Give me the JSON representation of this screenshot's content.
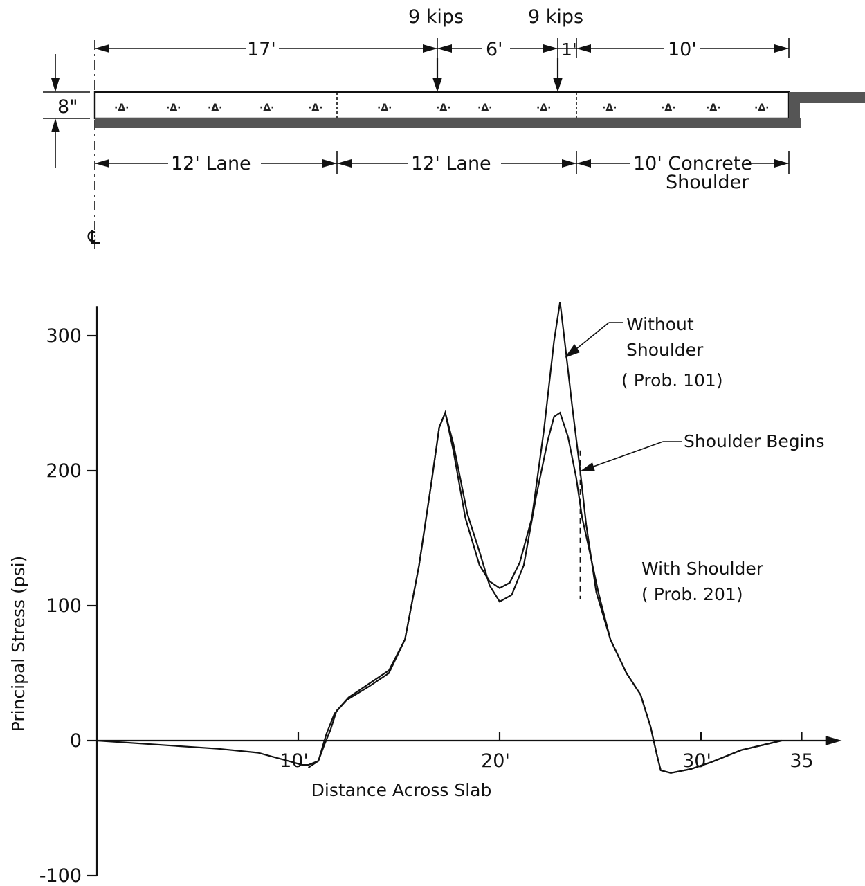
{
  "section_diagram": {
    "loads": [
      "9 kips",
      "9 kips"
    ],
    "spacing": [
      "17'",
      "6'",
      "1'",
      "10'"
    ],
    "slab_thickness": "8\"",
    "lanes": [
      "12' Lane",
      "12' Lane",
      "10' Concrete",
      "Shoulder"
    ],
    "centerline_symbol": "℄"
  },
  "chart_data": {
    "type": "line",
    "title": "",
    "xlabel": "Distance Across Slab",
    "ylabel": "Principal Stress  (psi)",
    "xlim": [
      0,
      37
    ],
    "ylim": [
      -100,
      325
    ],
    "x_ticks": [
      10,
      20,
      30,
      35
    ],
    "x_tick_labels": [
      "10'",
      "20'",
      "30'",
      "35"
    ],
    "y_ticks": [
      300,
      200,
      100,
      0,
      -100
    ],
    "y_tick_labels": [
      "300",
      "200",
      "100",
      "0",
      "-100"
    ],
    "annotations": {
      "without_shoulder": [
        "Without",
        "Shoulder",
        "( Prob. 101)"
      ],
      "shoulder_begins": "Shoulder Begins",
      "with_shoulder": [
        "With Shoulder",
        "( Prob. 201)"
      ]
    },
    "shoulder_begins_x": 24,
    "series": [
      {
        "points": [
          [
            0,
            0
          ],
          [
            3,
            -3
          ],
          [
            6,
            -6
          ],
          [
            8,
            -9
          ],
          [
            9.5,
            -15
          ],
          [
            10.2,
            -18
          ],
          [
            10.5,
            -18
          ],
          [
            11,
            -15
          ],
          [
            11.2,
            -5
          ],
          [
            11.4,
            5
          ],
          [
            11.8,
            20
          ],
          [
            12.4,
            30
          ],
          [
            13.5,
            40
          ],
          [
            14.5,
            50
          ],
          [
            15.3,
            75
          ],
          [
            16,
            130
          ],
          [
            16.6,
            190
          ],
          [
            17,
            232
          ],
          [
            17.3,
            243
          ],
          [
            17.7,
            215
          ],
          [
            18.3,
            165
          ],
          [
            19,
            130
          ],
          [
            19.5,
            118
          ],
          [
            20,
            113
          ],
          [
            20.5,
            117
          ],
          [
            21,
            132
          ],
          [
            21.6,
            165
          ],
          [
            22.2,
            230
          ],
          [
            22.7,
            296
          ],
          [
            23,
            325
          ],
          [
            23.2,
            300
          ],
          [
            23.6,
            248
          ],
          [
            24,
            200
          ],
          [
            24.3,
            160
          ],
          [
            24.8,
            110
          ],
          [
            25.5,
            75
          ],
          [
            26.3,
            50
          ],
          [
            27,
            34
          ],
          [
            27.5,
            10
          ],
          [
            27.8,
            -10
          ],
          [
            28,
            -22
          ],
          [
            28.5,
            -24
          ],
          [
            29.5,
            -21
          ],
          [
            30.5,
            -16
          ],
          [
            32,
            -7
          ],
          [
            34,
            0
          ]
        ]
      },
      {
        "points": [
          [
            10.5,
            -20
          ],
          [
            11,
            -15
          ],
          [
            11.3,
            -3
          ],
          [
            11.6,
            8
          ],
          [
            11.9,
            22
          ],
          [
            12.5,
            32
          ],
          [
            13.5,
            42
          ],
          [
            14.5,
            52
          ],
          [
            15.3,
            75
          ],
          [
            16,
            130
          ],
          [
            16.6,
            190
          ],
          [
            17,
            232
          ],
          [
            17.3,
            243
          ],
          [
            17.7,
            220
          ],
          [
            18.4,
            168
          ],
          [
            19,
            140
          ],
          [
            19.5,
            115
          ],
          [
            20,
            103
          ],
          [
            20.6,
            108
          ],
          [
            21.2,
            130
          ],
          [
            21.8,
            180
          ],
          [
            22.4,
            223
          ],
          [
            22.7,
            240
          ],
          [
            23,
            243
          ],
          [
            23.4,
            225
          ],
          [
            23.8,
            195
          ],
          [
            24.1,
            165
          ],
          [
            24.4,
            145
          ],
          [
            24.9,
            110
          ],
          [
            25.5,
            75
          ],
          [
            26.3,
            50
          ],
          [
            27,
            34
          ],
          [
            27.5,
            10
          ],
          [
            27.8,
            -10
          ],
          [
            28,
            -22
          ],
          [
            28.5,
            -24
          ],
          [
            29.5,
            -21
          ],
          [
            30.5,
            -16
          ],
          [
            32,
            -7
          ],
          [
            34,
            0
          ]
        ]
      }
    ]
  }
}
